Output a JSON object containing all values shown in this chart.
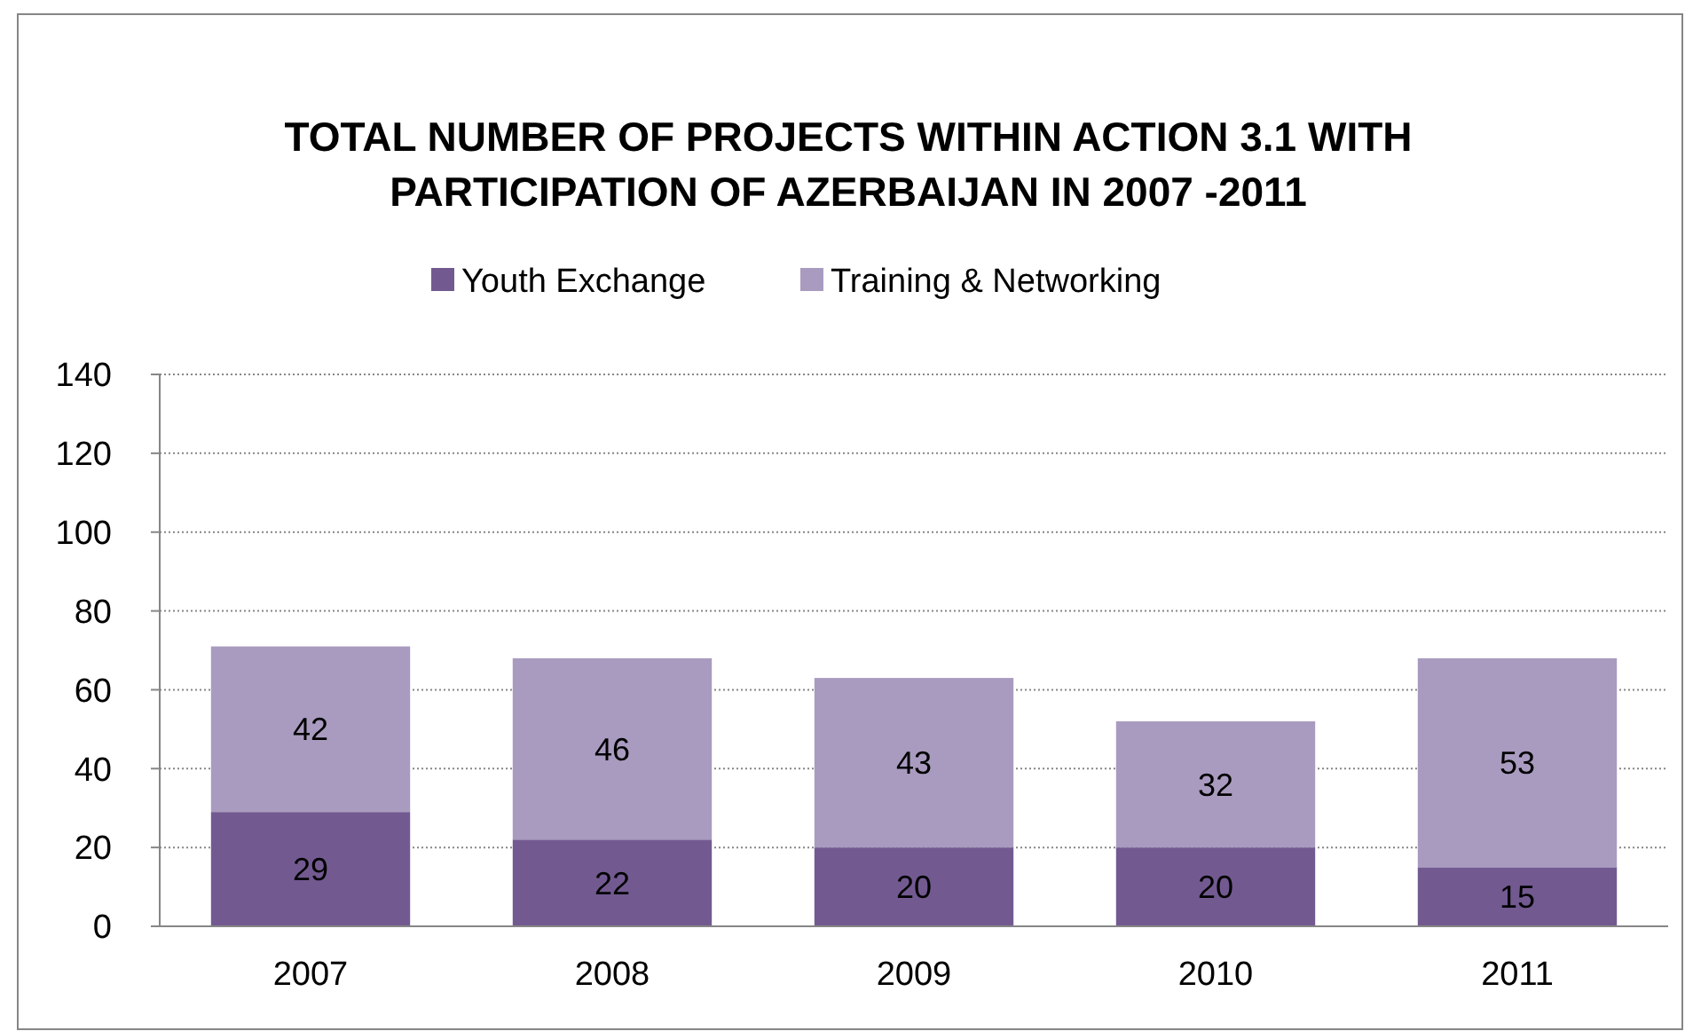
{
  "chart_data": {
    "type": "bar",
    "title": "TOTAL NUMBER OF PROJECTS WITHIN ACTION 3.1 WITH PARTICIPATION OF AZERBAIJAN IN 2007 -2011",
    "categories": [
      "2007",
      "2008",
      "2009",
      "2010",
      "2011"
    ],
    "series": [
      {
        "name": "Youth Exchange",
        "color": "#725a91",
        "values": [
          29,
          22,
          20,
          20,
          15
        ]
      },
      {
        "name": "Training & Networking",
        "color": "#a99bbf",
        "values": [
          42,
          46,
          43,
          32,
          53
        ]
      }
    ],
    "stacked": true,
    "ylim": [
      0,
      140
    ],
    "yticks": [
      0,
      20,
      40,
      60,
      80,
      100,
      120,
      140
    ],
    "grid": "y",
    "legend": "top",
    "data_labels": true
  }
}
